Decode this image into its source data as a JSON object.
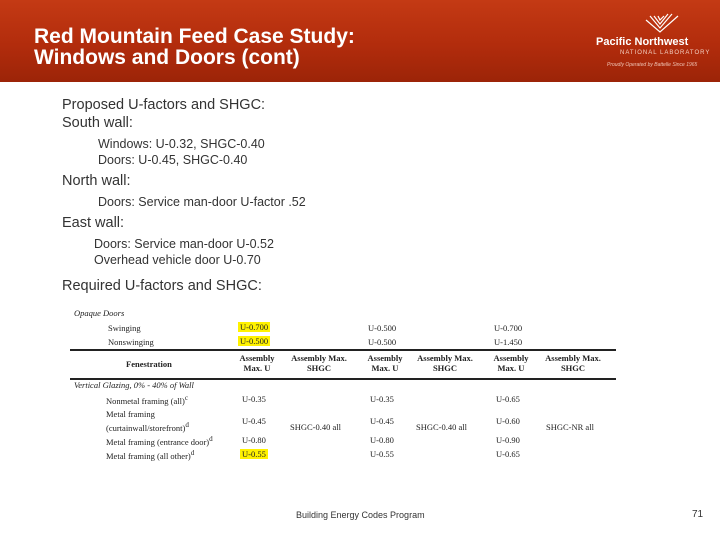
{
  "header": {
    "title_line1": "Red Mountain Feed Case Study:",
    "title_line2": "Windows and Doors (cont)",
    "logo_name": "Pacific Northwest",
    "logo_sub": "NATIONAL LABORATORY",
    "logo_tagline": "Proudly Operated by Battelle Since 1965",
    "accent_color": "#b22c0c"
  },
  "content": {
    "proposed_heading": "Proposed U-factors and SHGC:",
    "south_heading": "South wall:",
    "south_windows": "Windows:  U-0.32, SHGC-0.40",
    "south_doors": "Doors: U-0.45, SHGC-0.40",
    "north_heading": "North wall:",
    "north_doors": "Doors: Service man-door U-factor .52",
    "east_heading": "East wall:",
    "east_doors": "Doors:  Service man-door U-0.52",
    "east_overhead": "Overhead vehicle door U-0.70",
    "required_heading": "Required U-factors and SHGC:"
  },
  "table": {
    "opaque_heading": "Opaque Doors",
    "opaque_rows": [
      {
        "label": "Swinging",
        "v1": "U-0.700",
        "v2": "U-0.500",
        "v3": "U-0.700"
      },
      {
        "label": "Nonswinging",
        "v1": "U-0.500",
        "v2": "U-0.500",
        "v3": "U-1.450"
      }
    ],
    "headers": {
      "fenestration": "Fenestration",
      "assembly_u": "Assembly Max. U",
      "assembly_shgc": "Assembly Max. SHGC"
    },
    "glazing_heading": "Vertical Glazing, 0% - 40% of Wall",
    "glazing_rows": [
      {
        "label": "Nonmetal framing (all)",
        "sup": "c",
        "v1": "U-0.35",
        "s1": "",
        "v2": "U-0.35",
        "s2": "",
        "v3": "U-0.65",
        "s3": ""
      },
      {
        "label": "Metal framing",
        "label2": "(curtainwall/storefront)",
        "sup": "d",
        "v1": "U-0.45",
        "s1": "SHGC-0.40 all",
        "v2": "U-0.45",
        "s2": "SHGC-0.40 all",
        "v3": "U-0.60",
        "s3": "SHGC-NR all"
      },
      {
        "label": "Metal framing (entrance door)",
        "sup": "d",
        "v1": "U-0.80",
        "s1": "",
        "v2": "U-0.80",
        "s2": "",
        "v3": "U-0.90",
        "s3": ""
      },
      {
        "label": "Metal framing (all other)",
        "sup": "d",
        "v1": "U-0.55",
        "s1": "",
        "v2": "U-0.55",
        "s2": "",
        "v3": "U-0.65",
        "s3": ""
      }
    ],
    "highlight_color": "#fff200"
  },
  "footer": {
    "program": "Building Energy Codes Program",
    "page_number": "71"
  }
}
